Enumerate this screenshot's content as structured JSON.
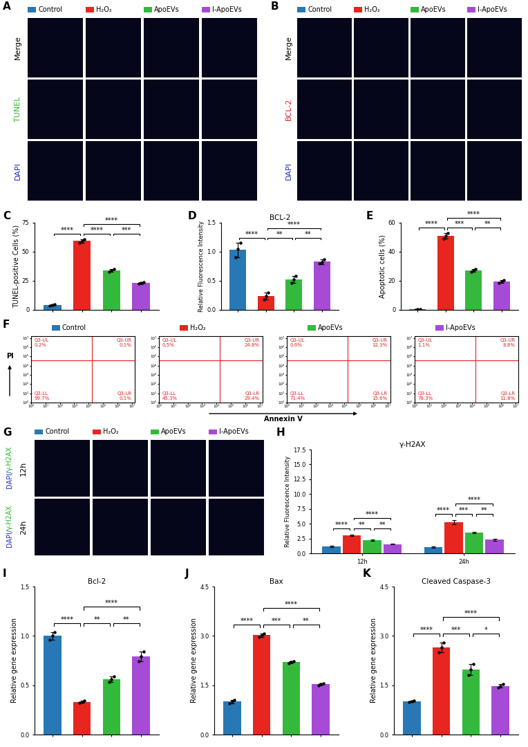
{
  "groups": [
    {
      "name": "Control",
      "color": "#2878b5"
    },
    {
      "name": "H₂O₂",
      "color": "#e8251f"
    },
    {
      "name": "ApoEVs",
      "color": "#34b93c"
    },
    {
      "name": "I-ApoEVs",
      "color": "#a64bd6"
    }
  ],
  "panels": {
    "A": {
      "label": "A",
      "rows": [
        {
          "name": "Merge",
          "color": "#000000"
        },
        {
          "name": "TUNEL",
          "color": "#2db82d"
        },
        {
          "name": "DAPI",
          "color": "#2030c0"
        }
      ]
    },
    "B": {
      "label": "B",
      "rows": [
        {
          "name": "Merge",
          "color": "#000000"
        },
        {
          "name": "BCL-2",
          "color": "#e02020"
        },
        {
          "name": "DAPI",
          "color": "#2030c0"
        }
      ]
    },
    "G": {
      "label": "G",
      "stain_label": [
        {
          "text": "DAPI/",
          "color": "#2030c0"
        },
        {
          "text": "γ-H2AX",
          "color": "#2db82d"
        }
      ],
      "rows": [
        {
          "name": "12h",
          "color": "#000000"
        },
        {
          "name": "24h",
          "color": "#000000"
        }
      ]
    },
    "F": {
      "label": "F",
      "x_label": "Annexin V",
      "y_label": "PI",
      "log": true,
      "xlim": [
        1,
        15848932
      ],
      "ylim": [
        1,
        15848932
      ],
      "xticks": [
        {
          "value": 1,
          "label": "10⁰"
        },
        {
          "value": 10,
          "label": "10¹"
        },
        {
          "value": 100,
          "label": "10²"
        },
        {
          "value": 1000,
          "label": "10³"
        },
        {
          "value": 10000,
          "label": "10⁴"
        },
        {
          "value": 100000,
          "label": "10⁵"
        },
        {
          "value": 1000000,
          "label": "10⁶"
        },
        {
          "value": 10000000,
          "label": "10⁷"
        }
      ],
      "yticks": [
        {
          "value": 1,
          "label": "10⁰"
        },
        {
          "value": 10,
          "label": "10¹"
        },
        {
          "value": 100,
          "label": "10²"
        },
        {
          "value": 1000,
          "label": "10³"
        },
        {
          "value": 10000,
          "label": "10⁴"
        },
        {
          "value": 100000,
          "label": "10⁵"
        },
        {
          "value": 1000000,
          "label": "10⁶"
        },
        {
          "value": 10000000,
          "label": "10⁷"
        }
      ],
      "gate": {
        "x": 16000,
        "y": 40000
      },
      "plots": [
        {
          "group": "Control",
          "quadrants": {
            "UL": {
              "name": "Q3-UL",
              "percent": "0.2%"
            },
            "UR": {
              "name": "Q3-UR",
              "percent": "0.1%"
            },
            "LL": {
              "name": "Q3-LL",
              "percent": "99.7%"
            },
            "LR": {
              "name": "Q3-LR",
              "percent": "0.1%"
            }
          }
        },
        {
          "group": "H₂O₂",
          "quadrants": {
            "UL": {
              "name": "Q3-UL",
              "percent": "0.5%"
            },
            "UR": {
              "name": "Q3-UR",
              "percent": "24.8%"
            },
            "LL": {
              "name": "Q3-LL",
              "percent": "45.3%"
            },
            "LR": {
              "name": "Q3-LR",
              "percent": "29.4%"
            }
          }
        },
        {
          "group": "ApoEVs",
          "quadrants": {
            "UL": {
              "name": "Q3-UL",
              "percent": "0.6%"
            },
            "UR": {
              "name": "Q3-UR",
              "percent": "12.3%"
            },
            "LL": {
              "name": "Q3-LL",
              "percent": "71.4%"
            },
            "LR": {
              "name": "Q3-LR",
              "percent": "15.6%"
            }
          }
        },
        {
          "group": "I-ApoEVs",
          "quadrants": {
            "UL": {
              "name": "Q3-UL",
              "percent": "1.1%"
            },
            "UR": {
              "name": "Q3-UR",
              "percent": "8.8%"
            },
            "LL": {
              "name": "Q3-LL",
              "percent": "78.3%"
            },
            "LR": {
              "name": "Q3-LR",
              "percent": "11.8%"
            }
          }
        }
      ]
    }
  },
  "chart_data": [
    {
      "type": "bar",
      "panel_label": "C",
      "y_label": "TUNEL-positive Cells (%)",
      "tick_labels": "y",
      "categories": [
        "Control",
        "H₂O₂",
        "ApoEVs",
        "I-ApoEVs"
      ],
      "colors": [
        "#2878b5",
        "#e8251f",
        "#34b93c",
        "#a64bd6"
      ],
      "values": [
        4,
        59.5,
        34,
        23
      ],
      "errors": [
        0.6,
        1.5,
        1.0,
        0.7
      ],
      "points": [
        [
          3.5,
          4,
          4.6
        ],
        [
          58,
          59.5,
          61
        ],
        [
          33,
          34,
          35
        ],
        [
          22.5,
          23,
          23.8
        ]
      ],
      "ylim": [
        0,
        75
      ],
      "yticks": [
        0,
        25,
        50,
        75
      ],
      "significance": [
        {
          "pair": [
            "Control",
            "H₂O₂"
          ],
          "label": "****"
        },
        {
          "pair": [
            "H₂O₂",
            "ApoEVs"
          ],
          "label": "****"
        },
        {
          "pair": [
            "ApoEVs",
            "I-ApoEVs"
          ],
          "label": "***"
        },
        {
          "pair": [
            "H₂O₂",
            "I-ApoEVs"
          ],
          "label": "****"
        }
      ]
    },
    {
      "type": "bar",
      "panel_label": "D",
      "title": "BCL-2",
      "y_label": "Relative Fluorescence Intensity",
      "tick_labels": "y",
      "categories": [
        "Control",
        "H₂O₂",
        "ApoEVs",
        "I-ApoEVs"
      ],
      "colors": [
        "#2878b5",
        "#e8251f",
        "#34b93c",
        "#a64bd6"
      ],
      "values": [
        1.03,
        0.24,
        0.52,
        0.83
      ],
      "errors": [
        0.12,
        0.06,
        0.06,
        0.04
      ],
      "points": [
        [
          0.9,
          1.05,
          1.15
        ],
        [
          0.18,
          0.24,
          0.3
        ],
        [
          0.46,
          0.52,
          0.58
        ],
        [
          0.8,
          0.82,
          0.87
        ]
      ],
      "ylim": [
        0,
        1.5
      ],
      "yticks": [
        {
          "value": 0,
          "label": "0.0"
        },
        {
          "value": 0.5,
          "label": "0.5"
        },
        {
          "value": 1.0,
          "label": "1.0"
        },
        {
          "value": 1.5,
          "label": "1.5"
        }
      ],
      "significance": [
        {
          "pair": [
            "Control",
            "H₂O₂"
          ],
          "label": "****"
        },
        {
          "pair": [
            "H₂O₂",
            "ApoEVs"
          ],
          "label": "**"
        },
        {
          "pair": [
            "ApoEVs",
            "I-ApoEVs"
          ],
          "label": "**"
        },
        {
          "pair": [
            "H₂O₂",
            "I-ApoEVs"
          ],
          "label": "****"
        }
      ]
    },
    {
      "type": "bar",
      "panel_label": "E",
      "y_label": "Apoptotic cells (%)",
      "tick_labels": "y",
      "categories": [
        "Control",
        "H₂O₂",
        "ApoEVs",
        "I-ApoEVs"
      ],
      "colors": [
        "#2878b5",
        "#e8251f",
        "#34b93c",
        "#a64bd6"
      ],
      "values": [
        0.3,
        51,
        27,
        19.5
      ],
      "errors": [
        0.3,
        2,
        1,
        1
      ],
      "points": [
        [
          0,
          0.3,
          0.6
        ],
        [
          49,
          51,
          53
        ],
        [
          26,
          27,
          28
        ],
        [
          18.5,
          19.5,
          20.5
        ]
      ],
      "ylim": [
        0,
        60
      ],
      "yticks": [
        0,
        20,
        40,
        60
      ],
      "significance": [
        {
          "pair": [
            "Control",
            "H₂O₂"
          ],
          "label": "****"
        },
        {
          "pair": [
            "H₂O₂",
            "ApoEVs"
          ],
          "label": "***"
        },
        {
          "pair": [
            "ApoEVs",
            "I-ApoEVs"
          ],
          "label": "**"
        },
        {
          "pair": [
            "H₂O₂",
            "I-ApoEVs"
          ],
          "label": "****"
        }
      ]
    },
    {
      "type": "grouped_bar",
      "panel_label": "H",
      "title": "γ-H2AX",
      "y_label": "Relative Fluorescence Intensity",
      "categories": [
        "12h",
        "24h"
      ],
      "series": [
        {
          "name": "Control",
          "color": "#2878b5",
          "values": [
            1.15,
            1.05
          ],
          "errors": [
            0.15,
            0.1
          ]
        },
        {
          "name": "H₂O₂",
          "color": "#e8251f",
          "values": [
            3.05,
            5.2
          ],
          "errors": [
            0.08,
            0.35
          ]
        },
        {
          "name": "ApoEVs",
          "color": "#34b93c",
          "values": [
            2.25,
            3.45
          ],
          "errors": [
            0.1,
            0.12
          ]
        },
        {
          "name": "I-ApoEVs",
          "color": "#a64bd6",
          "values": [
            1.55,
            2.3
          ],
          "errors": [
            0.07,
            0.15
          ]
        }
      ],
      "ylim": [
        0,
        17.5
      ],
      "yticks": [
        {
          "value": 0,
          "label": "0.0"
        },
        {
          "value": 2.5,
          "label": "2.5"
        },
        {
          "value": 5,
          "label": "5.0"
        },
        {
          "value": 7.5,
          "label": "7.5"
        },
        {
          "value": 10,
          "label": "10.0"
        },
        {
          "value": 12.5,
          "label": "12.5"
        },
        {
          "value": 15,
          "label": "15.0"
        },
        {
          "value": 17.5,
          "label": "17.5"
        }
      ],
      "significance": [
        {
          "category": "12h",
          "pair": [
            "Control",
            "H₂O₂"
          ],
          "label": "****"
        },
        {
          "category": "12h",
          "pair": [
            "H₂O₂",
            "ApoEVs"
          ],
          "label": "**"
        },
        {
          "category": "12h",
          "pair": [
            "ApoEVs",
            "I-ApoEVs"
          ],
          "label": "**"
        },
        {
          "category": "12h",
          "pair": [
            "H₂O₂",
            "I-ApoEVs"
          ],
          "label": "****"
        },
        {
          "category": "24h",
          "pair": [
            "Control",
            "H₂O₂"
          ],
          "label": "****"
        },
        {
          "category": "24h",
          "pair": [
            "H₂O₂",
            "ApoEVs"
          ],
          "label": "***"
        },
        {
          "category": "24h",
          "pair": [
            "ApoEVs",
            "I-ApoEVs"
          ],
          "label": "**"
        },
        {
          "category": "24h",
          "pair": [
            "H₂O₂",
            "I-ApoEVs"
          ],
          "label": "****"
        }
      ]
    },
    {
      "type": "bar",
      "panel_label": "I",
      "title": "Bcl-2",
      "y_label": "Relative gene expression",
      "tick_labels": "y",
      "categories": [
        "Control",
        "H₂O₂",
        "ApoEVs",
        "I-ApoEVs"
      ],
      "colors": [
        "#2878b5",
        "#e8251f",
        "#34b93c",
        "#a64bd6"
      ],
      "values": [
        1.0,
        0.33,
        0.56,
        0.79
      ],
      "errors": [
        0.04,
        0.01,
        0.03,
        0.05
      ],
      "points": [
        [
          0.96,
          1.0,
          1.04
        ],
        [
          0.32,
          0.33,
          0.34
        ],
        [
          0.53,
          0.56,
          0.59
        ],
        [
          0.74,
          0.79,
          0.84
        ]
      ],
      "ylim": [
        0,
        1.5
      ],
      "yticks": [
        {
          "value": 0,
          "label": "0.0"
        },
        {
          "value": 0.5,
          "label": "0.5"
        },
        {
          "value": 1.0,
          "label": "1.0"
        },
        {
          "value": 1.5,
          "label": "1.5"
        }
      ],
      "significance": [
        {
          "pair": [
            "Control",
            "H₂O₂"
          ],
          "label": "****"
        },
        {
          "pair": [
            "H₂O₂",
            "ApoEVs"
          ],
          "label": "**"
        },
        {
          "pair": [
            "ApoEVs",
            "I-ApoEVs"
          ],
          "label": "**"
        },
        {
          "pair": [
            "H₂O₂",
            "I-ApoEVs"
          ],
          "label": "****"
        }
      ]
    },
    {
      "type": "bar",
      "panel_label": "J",
      "title": "Bax",
      "y_label": "Relative gene expression",
      "tick_labels": "y",
      "categories": [
        "Control",
        "H₂O₂",
        "ApoEVs",
        "I-ApoEVs"
      ],
      "colors": [
        "#2878b5",
        "#e8251f",
        "#34b93c",
        "#a64bd6"
      ],
      "values": [
        1.0,
        3.02,
        2.2,
        1.53
      ],
      "errors": [
        0.05,
        0.06,
        0.03,
        0.03
      ],
      "points": [
        [
          0.95,
          1.0,
          1.05
        ],
        [
          2.96,
          3.02,
          3.08
        ],
        [
          2.17,
          2.2,
          2.23
        ],
        [
          1.5,
          1.53,
          1.56
        ]
      ],
      "ylim": [
        0,
        4.5
      ],
      "yticks": [
        {
          "value": 0,
          "label": "0.0"
        },
        {
          "value": 1.5,
          "label": "1.5"
        },
        {
          "value": 3.0,
          "label": "3.0"
        },
        {
          "value": 4.5,
          "label": "4.5"
        }
      ],
      "significance": [
        {
          "pair": [
            "Control",
            "H₂O₂"
          ],
          "label": "****"
        },
        {
          "pair": [
            "H₂O₂",
            "ApoEVs"
          ],
          "label": "***"
        },
        {
          "pair": [
            "ApoEVs",
            "I-ApoEVs"
          ],
          "label": "**"
        },
        {
          "pair": [
            "H₂O₂",
            "I-ApoEVs"
          ],
          "label": "****"
        }
      ]
    },
    {
      "type": "bar",
      "panel_label": "K",
      "title": "Cleaved Caspase-3",
      "y_label": "Relative gene expression",
      "tick_labels": "y",
      "categories": [
        "Control",
        "H₂O₂",
        "ApoEVs",
        "I-ApoEVs"
      ],
      "colors": [
        "#2878b5",
        "#e8251f",
        "#34b93c",
        "#a64bd6"
      ],
      "values": [
        1.0,
        2.65,
        1.97,
        1.48
      ],
      "errors": [
        0.02,
        0.15,
        0.17,
        0.06
      ],
      "points": [
        [
          0.98,
          1.0,
          1.02
        ],
        [
          2.5,
          2.65,
          2.8
        ],
        [
          1.8,
          1.97,
          2.15
        ],
        [
          1.42,
          1.48,
          1.54
        ]
      ],
      "ylim": [
        0,
        4.5
      ],
      "yticks": [
        {
          "value": 0,
          "label": "0.0"
        },
        {
          "value": 1.5,
          "label": "1.5"
        },
        {
          "value": 3.0,
          "label": "3.0"
        },
        {
          "value": 4.5,
          "label": "4.5"
        }
      ],
      "significance": [
        {
          "pair": [
            "Control",
            "H₂O₂"
          ],
          "label": "****"
        },
        {
          "pair": [
            "H₂O₂",
            "ApoEVs"
          ],
          "label": "***"
        },
        {
          "pair": [
            "ApoEVs",
            "I-ApoEVs"
          ],
          "label": "*"
        },
        {
          "pair": [
            "H₂O₂",
            "I-ApoEVs"
          ],
          "label": "****"
        }
      ]
    }
  ]
}
